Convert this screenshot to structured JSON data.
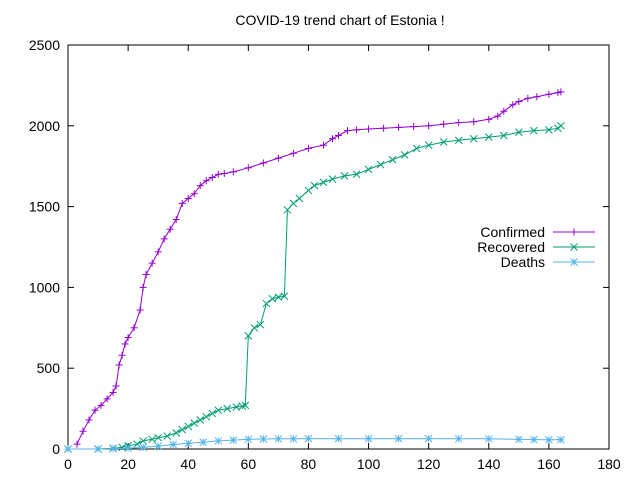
{
  "chart_data": {
    "type": "line",
    "title": "COVID-19 trend chart of Estonia !",
    "xlabel": "",
    "ylabel": "",
    "xlim": [
      0,
      180
    ],
    "ylim": [
      0,
      2500
    ],
    "x_ticks": [
      0,
      20,
      40,
      60,
      80,
      100,
      120,
      140,
      160,
      180
    ],
    "y_ticks": [
      0,
      500,
      1000,
      1500,
      2000,
      2500
    ],
    "grid": false,
    "legend_position": "right",
    "series": [
      {
        "name": "Confirmed",
        "color": "#9400d3",
        "marker": "plus",
        "points": [
          [
            3,
            30
          ],
          [
            5,
            110
          ],
          [
            7,
            180
          ],
          [
            9,
            240
          ],
          [
            11,
            270
          ],
          [
            13,
            310
          ],
          [
            15,
            350
          ],
          [
            16,
            390
          ],
          [
            17,
            520
          ],
          [
            18,
            580
          ],
          [
            19,
            650
          ],
          [
            20,
            690
          ],
          [
            22,
            750
          ],
          [
            24,
            860
          ],
          [
            25,
            1000
          ],
          [
            26,
            1080
          ],
          [
            28,
            1150
          ],
          [
            30,
            1220
          ],
          [
            32,
            1300
          ],
          [
            34,
            1360
          ],
          [
            36,
            1420
          ],
          [
            38,
            1520
          ],
          [
            40,
            1550
          ],
          [
            42,
            1580
          ],
          [
            44,
            1630
          ],
          [
            46,
            1660
          ],
          [
            48,
            1680
          ],
          [
            50,
            1700
          ],
          [
            52,
            1705
          ],
          [
            55,
            1715
          ],
          [
            60,
            1740
          ],
          [
            65,
            1770
          ],
          [
            70,
            1800
          ],
          [
            75,
            1830
          ],
          [
            80,
            1860
          ],
          [
            85,
            1880
          ],
          [
            88,
            1920
          ],
          [
            90,
            1940
          ],
          [
            93,
            1970
          ],
          [
            96,
            1975
          ],
          [
            100,
            1980
          ],
          [
            105,
            1985
          ],
          [
            110,
            1990
          ],
          [
            115,
            1995
          ],
          [
            120,
            2000
          ],
          [
            125,
            2010
          ],
          [
            130,
            2020
          ],
          [
            135,
            2025
          ],
          [
            140,
            2040
          ],
          [
            143,
            2060
          ],
          [
            145,
            2090
          ],
          [
            148,
            2130
          ],
          [
            150,
            2150
          ],
          [
            153,
            2170
          ],
          [
            156,
            2180
          ],
          [
            160,
            2195
          ],
          [
            163,
            2205
          ],
          [
            164,
            2210
          ]
        ]
      },
      {
        "name": "Recovered",
        "color": "#009e73",
        "marker": "cross",
        "points": [
          [
            0,
            0
          ],
          [
            10,
            0
          ],
          [
            15,
            5
          ],
          [
            18,
            10
          ],
          [
            20,
            20
          ],
          [
            23,
            30
          ],
          [
            25,
            50
          ],
          [
            28,
            60
          ],
          [
            30,
            70
          ],
          [
            33,
            80
          ],
          [
            36,
            100
          ],
          [
            38,
            120
          ],
          [
            40,
            140
          ],
          [
            42,
            160
          ],
          [
            44,
            180
          ],
          [
            46,
            200
          ],
          [
            48,
            220
          ],
          [
            50,
            240
          ],
          [
            53,
            250
          ],
          [
            56,
            260
          ],
          [
            58,
            265
          ],
          [
            59,
            270
          ],
          [
            60,
            700
          ],
          [
            62,
            750
          ],
          [
            64,
            770
          ],
          [
            66,
            900
          ],
          [
            68,
            930
          ],
          [
            70,
            940
          ],
          [
            72,
            945
          ],
          [
            73,
            1480
          ],
          [
            75,
            1520
          ],
          [
            77,
            1550
          ],
          [
            80,
            1600
          ],
          [
            82,
            1630
          ],
          [
            85,
            1650
          ],
          [
            88,
            1670
          ],
          [
            92,
            1690
          ],
          [
            96,
            1700
          ],
          [
            100,
            1730
          ],
          [
            104,
            1760
          ],
          [
            108,
            1790
          ],
          [
            112,
            1820
          ],
          [
            116,
            1860
          ],
          [
            120,
            1880
          ],
          [
            125,
            1900
          ],
          [
            130,
            1910
          ],
          [
            135,
            1920
          ],
          [
            140,
            1930
          ],
          [
            145,
            1940
          ],
          [
            150,
            1960
          ],
          [
            155,
            1970
          ],
          [
            160,
            1975
          ],
          [
            163,
            1985
          ],
          [
            164,
            2000
          ]
        ]
      },
      {
        "name": "Deaths",
        "color": "#56b4e9",
        "marker": "star",
        "points": [
          [
            0,
            0
          ],
          [
            10,
            0
          ],
          [
            15,
            2
          ],
          [
            20,
            5
          ],
          [
            25,
            10
          ],
          [
            30,
            18
          ],
          [
            35,
            28
          ],
          [
            40,
            35
          ],
          [
            45,
            42
          ],
          [
            50,
            50
          ],
          [
            55,
            55
          ],
          [
            60,
            60
          ],
          [
            65,
            62
          ],
          [
            70,
            63
          ],
          [
            75,
            63
          ],
          [
            80,
            64
          ],
          [
            90,
            64
          ],
          [
            100,
            64
          ],
          [
            110,
            64
          ],
          [
            120,
            64
          ],
          [
            130,
            63
          ],
          [
            140,
            63
          ],
          [
            150,
            60
          ],
          [
            155,
            58
          ],
          [
            160,
            57
          ],
          [
            164,
            57
          ]
        ]
      }
    ]
  }
}
